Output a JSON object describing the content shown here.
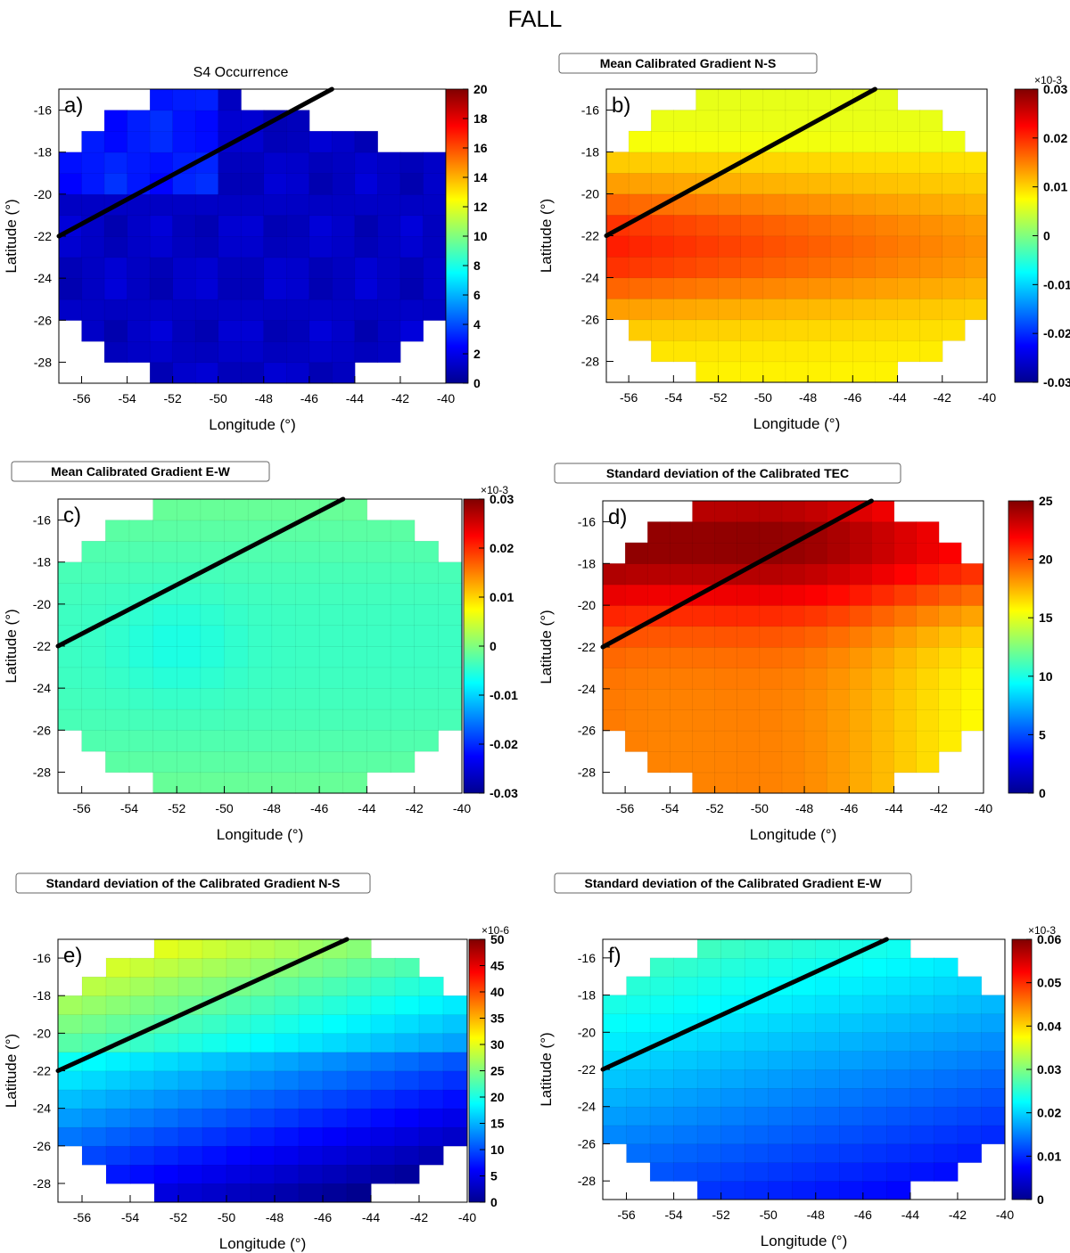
{
  "figure": {
    "title": "FALL"
  },
  "colors": {
    "colormap": [
      "#00008f",
      "#0000ff",
      "#00ffff",
      "#ffff00",
      "#ff0000",
      "#800000"
    ],
    "trend_line": "#000000",
    "missing_cell": "#ffffff"
  },
  "chart_data": [
    {
      "id": "a",
      "type": "heatmap",
      "panel_label": "a)",
      "title": "S4 Occurrence",
      "title_boxed": false,
      "xlabel": "Longitude (°)",
      "ylabel": "Latitude (°)",
      "xlim": [
        -57,
        -40
      ],
      "ylim": [
        -29,
        -15
      ],
      "xticks": [
        -56,
        -54,
        -52,
        -50,
        -48,
        -46,
        -44,
        -42,
        -40
      ],
      "yticks": [
        -28,
        -26,
        -24,
        -22,
        -20,
        -18,
        -16
      ],
      "grid_cell_deg": 1,
      "colorbar": {
        "min": 0,
        "max": 20,
        "ticks": [
          0,
          2,
          4,
          6,
          8,
          10,
          12,
          14,
          16,
          18,
          20
        ],
        "multiplier": ""
      },
      "field": "s4",
      "line": {
        "x": [
          -57,
          -45
        ],
        "y": [
          -22,
          -15
        ]
      }
    },
    {
      "id": "b",
      "type": "heatmap",
      "panel_label": "b)",
      "title": "Mean Calibrated Gradient N-S",
      "title_boxed": true,
      "xlabel": "Longitude (°)",
      "ylabel": "Latitude (°)",
      "xlim": [
        -57,
        -40
      ],
      "ylim": [
        -29,
        -15
      ],
      "xticks": [
        -56,
        -54,
        -52,
        -50,
        -48,
        -46,
        -44,
        -42,
        -40
      ],
      "yticks": [
        -28,
        -26,
        -24,
        -22,
        -20,
        -18,
        -16
      ],
      "grid_cell_deg": 1,
      "colorbar": {
        "min": -0.03,
        "max": 0.03,
        "ticks": [
          -0.03,
          -0.02,
          -0.01,
          0,
          0.01,
          0.02,
          0.03
        ],
        "multiplier": "×10-3"
      },
      "field": "mean_ns",
      "line": {
        "x": [
          -57,
          -45
        ],
        "y": [
          -22,
          -15
        ]
      }
    },
    {
      "id": "c",
      "type": "heatmap",
      "panel_label": "c)",
      "title": "Mean Calibrated Gradient E-W",
      "title_boxed": true,
      "xlabel": "Longitude (°)",
      "ylabel": "Latitude (°)",
      "xlim": [
        -57,
        -40
      ],
      "ylim": [
        -29,
        -15
      ],
      "xticks": [
        -56,
        -54,
        -52,
        -50,
        -48,
        -46,
        -44,
        -42,
        -40
      ],
      "yticks": [
        -28,
        -26,
        -24,
        -22,
        -20,
        -18,
        -16
      ],
      "grid_cell_deg": 1,
      "colorbar": {
        "min": -0.03,
        "max": 0.03,
        "ticks": [
          -0.03,
          -0.02,
          -0.01,
          0,
          0.01,
          0.02,
          0.03
        ],
        "multiplier": "×10-3"
      },
      "field": "mean_ew",
      "line": {
        "x": [
          -57,
          -45
        ],
        "y": [
          -22,
          -15
        ]
      }
    },
    {
      "id": "d",
      "type": "heatmap",
      "panel_label": "d)",
      "title": "Standard deviation of the Calibrated TEC",
      "title_boxed": true,
      "xlabel": "Longitude (°)",
      "ylabel": "Latitude (°)",
      "xlim": [
        -57,
        -40
      ],
      "ylim": [
        -29,
        -15
      ],
      "xticks": [
        -56,
        -54,
        -52,
        -50,
        -48,
        -46,
        -44,
        -42,
        -40
      ],
      "yticks": [
        -28,
        -26,
        -24,
        -22,
        -20,
        -18,
        -16
      ],
      "grid_cell_deg": 1,
      "colorbar": {
        "min": 0,
        "max": 25,
        "ticks": [
          0,
          5,
          10,
          15,
          20,
          25
        ],
        "multiplier": ""
      },
      "field": "std_tec",
      "line": {
        "x": [
          -57,
          -45
        ],
        "y": [
          -22,
          -15
        ]
      }
    },
    {
      "id": "e",
      "type": "heatmap",
      "panel_label": "e)",
      "title": "Standard deviation of the Calibrated Gradient N-S",
      "title_boxed": true,
      "xlabel": "Longitude (°)",
      "ylabel": "Latitude (°)",
      "xlim": [
        -57,
        -40
      ],
      "ylim": [
        -29,
        -15
      ],
      "xticks": [
        -56,
        -54,
        -52,
        -50,
        -48,
        -46,
        -44,
        -42,
        -40
      ],
      "yticks": [
        -28,
        -26,
        -24,
        -22,
        -20,
        -18,
        -16
      ],
      "grid_cell_deg": 1,
      "colorbar": {
        "min": 0,
        "max": 50,
        "ticks": [
          0,
          5,
          10,
          15,
          20,
          25,
          30,
          35,
          40,
          45,
          50
        ],
        "multiplier": "×10-6"
      },
      "field": "std_ns",
      "line": {
        "x": [
          -57,
          -45
        ],
        "y": [
          -22,
          -15
        ]
      }
    },
    {
      "id": "f",
      "type": "heatmap",
      "panel_label": "f)",
      "title": "Standard deviation of the Calibrated Gradient E-W",
      "title_boxed": true,
      "xlabel": "Longitude (°)",
      "ylabel": "Latitude (°)",
      "xlim": [
        -57,
        -40
      ],
      "ylim": [
        -29,
        -15
      ],
      "xticks": [
        -56,
        -54,
        -52,
        -50,
        -48,
        -46,
        -44,
        -42,
        -40
      ],
      "yticks": [
        -28,
        -26,
        -24,
        -22,
        -20,
        -18,
        -16
      ],
      "grid_cell_deg": 1,
      "colorbar": {
        "min": 0,
        "max": 0.06,
        "ticks": [
          0,
          0.01,
          0.02,
          0.03,
          0.04,
          0.05,
          0.06
        ],
        "multiplier": "×10-3"
      },
      "field": "std_ew",
      "line": {
        "x": [
          -57,
          -45
        ],
        "y": [
          -22,
          -15
        ]
      }
    }
  ]
}
